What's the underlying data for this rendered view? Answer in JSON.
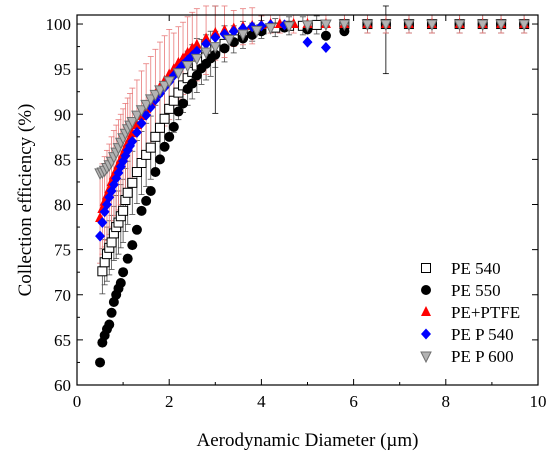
{
  "chart_data": {
    "type": "scatter",
    "xlabel": "Aerodynamic Diameter (µm)",
    "ylabel": "Collection efficiency (%)",
    "xlim": [
      0,
      10
    ],
    "ylim": [
      60,
      101
    ],
    "xticks": [
      0,
      2,
      4,
      6,
      8,
      10
    ],
    "yticks": [
      60,
      65,
      70,
      75,
      80,
      85,
      90,
      95,
      100
    ],
    "grid": false,
    "legend_position": "bottom-right",
    "series": [
      {
        "name": "PE 540",
        "marker": "open-square",
        "color": "#000000",
        "x": [
          0.55,
          0.6,
          0.65,
          0.7,
          0.75,
          0.8,
          0.85,
          0.9,
          0.95,
          1.0,
          1.05,
          1.1,
          1.2,
          1.3,
          1.4,
          1.5,
          1.6,
          1.7,
          1.8,
          1.9,
          2.0,
          2.1,
          2.2,
          2.3,
          2.4,
          2.5,
          2.6,
          2.7,
          2.8,
          2.9,
          3.0,
          3.2,
          3.4,
          3.6,
          3.8,
          4.0,
          4.3,
          4.6,
          4.9,
          5.2,
          5.8,
          6.3,
          6.7,
          7.2,
          7.7,
          8.3,
          8.8,
          9.2,
          9.7
        ],
        "y": [
          72.6,
          73.6,
          74.5,
          75.2,
          75.8,
          76.8,
          77.5,
          78.0,
          78.7,
          79.3,
          80.5,
          81.3,
          82.4,
          83.6,
          84.6,
          85.5,
          86.3,
          87.5,
          88.5,
          89.5,
          90.6,
          91.5,
          92.4,
          93.2,
          94.0,
          94.7,
          95.4,
          95.8,
          96.3,
          96.7,
          97.2,
          97.8,
          98.3,
          98.8,
          99.1,
          99.4,
          99.6,
          99.8,
          99.8,
          99.9,
          100.0,
          100.0,
          100.0,
          100.0,
          100.0,
          100.0,
          100.0,
          100.0,
          100.0
        ],
        "err": [
          2.5,
          2.5,
          3.0,
          3.0,
          3.0,
          3.0,
          3.5,
          3.5,
          3.5,
          3.5,
          3.5,
          3.5,
          3.5,
          3.5,
          3.5,
          3.5,
          3.5,
          3.5,
          3.5,
          3.5,
          3.5,
          3.5,
          3.0,
          3.0,
          3.0,
          3.0,
          3.0,
          2.5,
          2.5,
          2.5,
          2.0,
          2.0,
          1.5,
          1.5,
          1.0,
          1.0,
          1.0,
          1.0,
          1.0,
          1.0,
          1.0,
          1.0,
          1.0,
          1.0,
          1.0,
          1.0,
          1.0,
          1.0,
          1.0
        ]
      },
      {
        "name": "PE 550",
        "marker": "filled-circle",
        "color": "#000000",
        "x": [
          0.5,
          0.55,
          0.6,
          0.65,
          0.7,
          0.75,
          0.8,
          0.85,
          0.9,
          0.95,
          1.0,
          1.1,
          1.2,
          1.3,
          1.4,
          1.5,
          1.6,
          1.7,
          1.8,
          1.9,
          2.0,
          2.1,
          2.2,
          2.3,
          2.4,
          2.5,
          2.6,
          2.7,
          2.8,
          2.9,
          3.0,
          3.2,
          3.4,
          3.6,
          3.8,
          4.0,
          4.5,
          5.0,
          5.4,
          5.8,
          6.3,
          6.7,
          7.2,
          7.7,
          8.3,
          8.8,
          9.2,
          9.7
        ],
        "y": [
          62.5,
          64.7,
          65.5,
          66.2,
          66.7,
          68.0,
          69.2,
          70.0,
          70.7,
          71.3,
          72.5,
          74.0,
          75.5,
          77.2,
          79.3,
          80.4,
          81.5,
          83.6,
          85.0,
          86.4,
          87.5,
          88.6,
          90.3,
          91.2,
          92.8,
          93.4,
          94.3,
          95.1,
          95.6,
          96.2,
          96.6,
          97.3,
          98.0,
          98.4,
          98.8,
          99.2,
          99.6,
          99.4,
          98.7,
          99.2,
          100.0,
          100.0,
          100.0,
          100.0,
          100.0,
          100.0,
          100.0,
          100.0
        ],
        "err": [
          0,
          0,
          0,
          0,
          0,
          0,
          0,
          0,
          0,
          0,
          0,
          0,
          0,
          0,
          0,
          0,
          0,
          0,
          0,
          0,
          0,
          0,
          0,
          0,
          0,
          0,
          0,
          0,
          0,
          0,
          6.5,
          0,
          0,
          0,
          0,
          0,
          0,
          0,
          0,
          0,
          0,
          5.5,
          0,
          0,
          0,
          0,
          0,
          0
        ]
      },
      {
        "name": "PE+PTFE",
        "marker": "filled-triangle",
        "color": "#ff0000",
        "x": [
          0.5,
          0.55,
          0.6,
          0.65,
          0.7,
          0.75,
          0.8,
          0.85,
          0.9,
          0.95,
          1.0,
          1.05,
          1.1,
          1.15,
          1.2,
          1.3,
          1.4,
          1.5,
          1.6,
          1.7,
          1.8,
          1.9,
          2.0,
          2.1,
          2.2,
          2.3,
          2.4,
          2.5,
          2.6,
          2.8,
          3.0,
          3.2,
          3.4,
          3.6,
          3.8,
          4.0,
          4.2,
          4.4,
          4.7,
          5.0,
          5.4,
          5.8,
          6.3,
          6.7,
          7.2,
          7.7,
          8.3,
          8.8,
          9.2,
          9.7
        ],
        "y": [
          78.5,
          79.5,
          80.3,
          81.0,
          81.7,
          82.5,
          83.2,
          83.8,
          84.4,
          85.0,
          85.6,
          86.2,
          86.8,
          87.3,
          87.9,
          88.8,
          89.8,
          90.6,
          91.4,
          92.2,
          93.0,
          93.7,
          94.4,
          95.0,
          95.7,
          96.2,
          96.8,
          97.3,
          97.7,
          98.4,
          99.0,
          99.3,
          99.5,
          99.7,
          99.8,
          99.9,
          100.0,
          100.0,
          100.0,
          100.0,
          100.0,
          100.0,
          100.0,
          100.0,
          100.0,
          100.0,
          100.0,
          100.0,
          100.0,
          100.0
        ],
        "err": [
          5,
          5,
          5,
          5,
          5,
          5,
          5,
          5,
          5,
          5,
          5,
          5,
          5,
          5,
          5,
          5,
          5,
          5,
          5,
          5,
          5,
          5,
          5,
          4,
          4,
          4,
          4,
          4,
          4,
          4,
          3,
          3,
          2,
          2,
          2,
          1,
          1,
          1,
          1,
          1,
          1,
          1,
          1,
          1,
          1,
          1,
          1,
          1,
          1,
          1
        ]
      },
      {
        "name": "PE P 540",
        "marker": "filled-diamond",
        "color": "#0000ff",
        "x": [
          0.5,
          0.55,
          0.6,
          0.65,
          0.7,
          0.75,
          0.8,
          0.85,
          0.9,
          0.95,
          1.0,
          1.05,
          1.1,
          1.15,
          1.2,
          1.3,
          1.4,
          1.5,
          1.6,
          1.7,
          1.8,
          1.9,
          2.0,
          2.1,
          2.2,
          2.3,
          2.4,
          2.5,
          2.6,
          2.8,
          3.0,
          3.2,
          3.4,
          3.6,
          3.8,
          4.0,
          4.2,
          4.5,
          5.0,
          5.4
        ],
        "y": [
          76.5,
          78.0,
          79.2,
          80.0,
          80.8,
          81.5,
          82.2,
          82.9,
          83.5,
          84.2,
          84.8,
          85.4,
          86.0,
          86.5,
          87.0,
          88.0,
          89.0,
          89.9,
          90.8,
          91.6,
          92.3,
          93.0,
          93.6,
          94.3,
          94.9,
          95.5,
          96.0,
          96.5,
          97.0,
          97.8,
          98.5,
          98.9,
          99.2,
          99.5,
          99.7,
          99.8,
          99.9,
          99.9,
          98.0,
          97.4
        ],
        "err": [
          0,
          0,
          0,
          0,
          0,
          0,
          0,
          0,
          0,
          0,
          0,
          0,
          0,
          0,
          0,
          0,
          0,
          0,
          0,
          0,
          0,
          0,
          0,
          0,
          0,
          0,
          0,
          0,
          0,
          0,
          0,
          0,
          0,
          0,
          0,
          0,
          0,
          0,
          0,
          0
        ]
      },
      {
        "name": "PE P 600",
        "marker": "open-inverted-triangle",
        "color": "#808080",
        "x": [
          0.5,
          0.55,
          0.6,
          0.65,
          0.7,
          0.75,
          0.8,
          0.85,
          0.9,
          0.95,
          1.0,
          1.05,
          1.1,
          1.15,
          1.2,
          1.3,
          1.4,
          1.5,
          1.6,
          1.7,
          1.8,
          1.9,
          2.0,
          2.2,
          2.4,
          2.6,
          2.8,
          3.0,
          3.3,
          3.6,
          3.9,
          4.2,
          4.6,
          5.0,
          5.4,
          5.8,
          6.3,
          6.7,
          7.2,
          7.7,
          8.3,
          8.8,
          9.2,
          9.7
        ],
        "y": [
          83.5,
          83.6,
          83.8,
          84.1,
          84.4,
          84.8,
          85.3,
          85.8,
          86.3,
          86.9,
          87.4,
          87.9,
          88.4,
          88.8,
          89.2,
          89.9,
          90.5,
          91.1,
          91.7,
          92.2,
          92.7,
          93.2,
          93.7,
          94.6,
          95.4,
          96.2,
          96.9,
          97.5,
          98.3,
          98.9,
          99.3,
          99.6,
          99.8,
          99.9,
          100.0,
          100.0,
          100.0,
          100.0,
          100.0,
          100.0,
          100.0,
          100.0,
          100.0,
          100.0
        ],
        "err": [
          0,
          0,
          0,
          0,
          0,
          0,
          0,
          0,
          0,
          0,
          0,
          0,
          0,
          0,
          0,
          0,
          0,
          0,
          0,
          0,
          0,
          0,
          0,
          0,
          0,
          0,
          0,
          0,
          0,
          0,
          0,
          0,
          0,
          0,
          0,
          0,
          0,
          0,
          0,
          0,
          0,
          0,
          0,
          0
        ]
      }
    ]
  }
}
